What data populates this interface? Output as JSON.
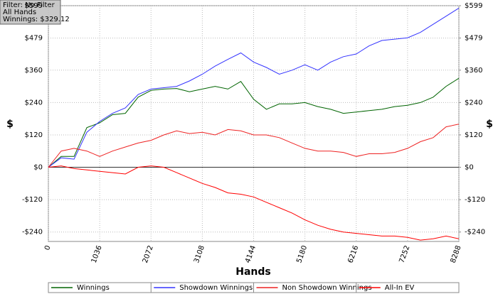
{
  "chart_data": {
    "type": "line",
    "info_box": [
      "Filter: No Filter",
      "All Hands",
      "Winnings: $329.12"
    ],
    "xlabel": "Hands",
    "ylabel": "$",
    "y2label": "$",
    "grid": true,
    "legend": "bottom",
    "xlim": [
      0,
      8288
    ],
    "xticks": [
      0,
      1036,
      2072,
      3108,
      4144,
      5180,
      6216,
      7252,
      8288
    ],
    "ylim": [
      -275,
      599
    ],
    "yticks": [
      {
        "value": 599,
        "label": "$599"
      },
      {
        "value": 479,
        "label": "$479"
      },
      {
        "value": 360,
        "label": "$360"
      },
      {
        "value": 240,
        "label": "$240"
      },
      {
        "value": 120,
        "label": "$120"
      },
      {
        "value": 0,
        "label": "$0"
      },
      {
        "value": -120,
        "label": "-$120"
      },
      {
        "value": -240,
        "label": "-$240"
      }
    ],
    "y2lim": [
      -275,
      599
    ],
    "y2ticks": [
      {
        "value": 599,
        "label": "$599"
      },
      {
        "value": 479,
        "label": "$479"
      },
      {
        "value": 360,
        "label": "$360"
      },
      {
        "value": 240,
        "label": "$240"
      },
      {
        "value": 120,
        "label": "$120"
      },
      {
        "value": 0,
        "label": "$0"
      },
      {
        "value": -120,
        "label": "-$120"
      },
      {
        "value": -240,
        "label": "-$240"
      }
    ],
    "x": [
      0,
      259,
      518,
      777,
      1036,
      1295,
      1554,
      1813,
      2072,
      2331,
      2590,
      2849,
      3108,
      3367,
      3626,
      3885,
      4144,
      4403,
      4662,
      4921,
      5180,
      5439,
      5698,
      5957,
      6216,
      6475,
      6734,
      6993,
      7252,
      7511,
      7770,
      8029,
      8288
    ],
    "series": [
      {
        "name": "Winnings",
        "color": "#006400",
        "values": [
          0,
          40,
          40,
          147,
          165,
          195,
          200,
          260,
          285,
          290,
          292,
          280,
          290,
          300,
          290,
          318,
          252,
          215,
          235,
          235,
          240,
          225,
          215,
          200,
          205,
          210,
          215,
          225,
          230,
          240,
          260,
          300,
          330
        ]
      },
      {
        "name": "Showdown Winnings",
        "color": "#3333ff",
        "values": [
          0,
          35,
          30,
          130,
          170,
          200,
          220,
          270,
          290,
          295,
          300,
          320,
          345,
          375,
          400,
          424,
          390,
          370,
          345,
          360,
          380,
          360,
          390,
          410,
          420,
          450,
          470,
          475,
          480,
          500,
          530,
          560,
          590
        ]
      },
      {
        "name": "Non Showdown Winnings",
        "color": "#ee2222",
        "values": [
          0,
          60,
          70,
          60,
          40,
          60,
          75,
          90,
          100,
          120,
          135,
          125,
          130,
          120,
          140,
          135,
          120,
          120,
          110,
          90,
          70,
          60,
          60,
          55,
          40,
          50,
          50,
          55,
          70,
          95,
          110,
          150,
          160
        ]
      },
      {
        "name": "All-In EV",
        "color": "#ff0000",
        "values": [
          0,
          5,
          -5,
          -10,
          -15,
          -20,
          -25,
          0,
          5,
          0,
          -20,
          -40,
          -60,
          -75,
          -95,
          -100,
          -110,
          -130,
          -150,
          -170,
          -195,
          -215,
          -230,
          -240,
          -245,
          -250,
          -255,
          -255,
          -260,
          -270,
          -265,
          -255,
          -265
        ]
      }
    ]
  }
}
